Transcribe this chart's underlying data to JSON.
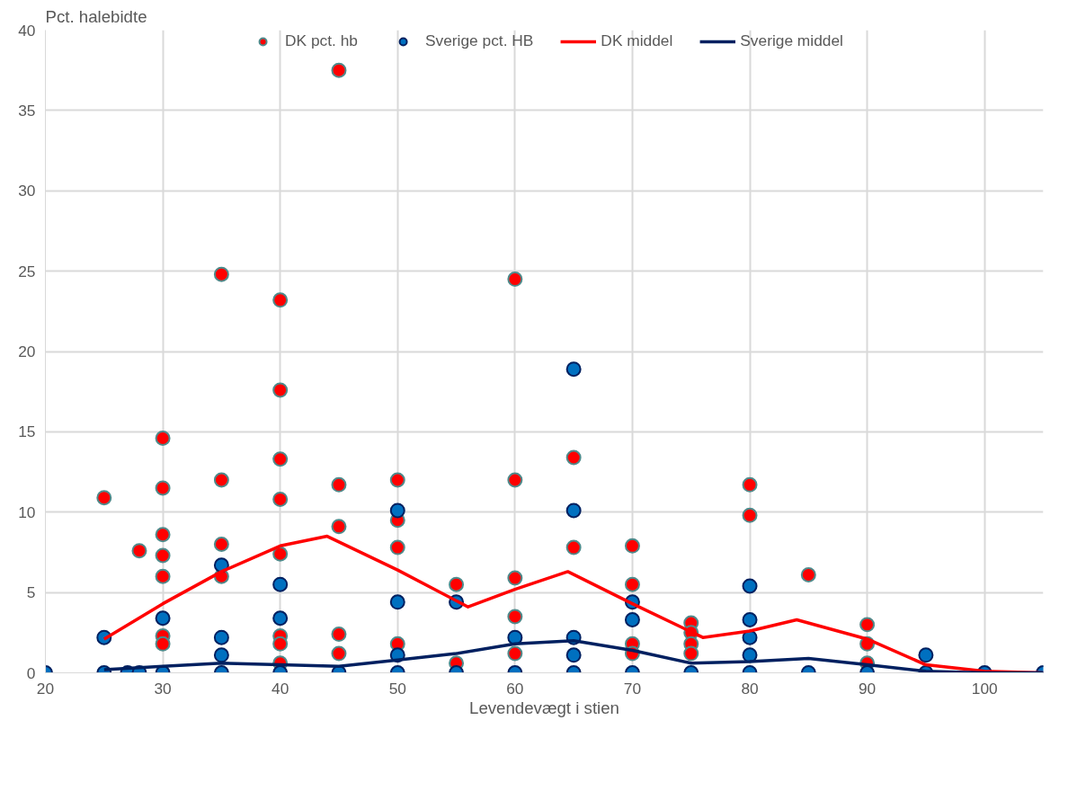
{
  "chart_data": {
    "type": "scatter",
    "xlabel": "Levendevægt i stien",
    "annotations": [
      "Pct. halebidte"
    ],
    "xlim": [
      20,
      105
    ],
    "xticks": [
      20,
      30,
      40,
      50,
      60,
      70,
      80,
      90,
      100
    ],
    "ylim": [
      0,
      40
    ],
    "yticks": [
      0,
      5,
      10,
      15,
      20,
      25,
      30,
      35,
      40
    ],
    "grid": true,
    "legend": "top",
    "series": [
      {
        "name": "DK pct. hb",
        "color": "#ff0000",
        "marker": "circle",
        "x": [
          25,
          28,
          30,
          30,
          30,
          30,
          30,
          30,
          30,
          35,
          35,
          35,
          35,
          40,
          40,
          40,
          40,
          40,
          40,
          40,
          40,
          45,
          45,
          45,
          45,
          45,
          50,
          50,
          50,
          50,
          55,
          55,
          60,
          60,
          60,
          60,
          60,
          65,
          65,
          70,
          70,
          70,
          70,
          75,
          75,
          75,
          75,
          80,
          80,
          85,
          90,
          90,
          90
        ],
        "values": [
          10.9,
          7.6,
          14.6,
          11.5,
          8.6,
          7.3,
          6.0,
          2.3,
          1.8,
          24.8,
          12.0,
          8.0,
          6.0,
          23.2,
          17.6,
          13.3,
          10.8,
          7.4,
          2.3,
          1.8,
          0.6,
          37.5,
          11.7,
          9.1,
          2.4,
          1.2,
          12.0,
          9.5,
          7.8,
          1.8,
          5.5,
          0.6,
          24.5,
          12.0,
          5.9,
          3.5,
          1.2,
          13.4,
          7.8,
          7.9,
          5.5,
          1.8,
          1.2,
          3.1,
          2.5,
          1.8,
          1.2,
          11.7,
          9.8,
          6.1,
          3.0,
          1.8,
          0.6
        ]
      },
      {
        "name": "Sverige pct. HB",
        "color": "#0070c0",
        "marker": "circle",
        "x": [
          20,
          25,
          25,
          27,
          28,
          30,
          30,
          35,
          35,
          35,
          35,
          40,
          40,
          40,
          45,
          50,
          50,
          50,
          50,
          55,
          55,
          60,
          60,
          65,
          65,
          65,
          65,
          65,
          70,
          70,
          70,
          75,
          80,
          80,
          80,
          80,
          80,
          85,
          90,
          95,
          95,
          100,
          105
        ],
        "values": [
          0,
          2.2,
          0,
          0,
          0,
          3.4,
          0,
          6.7,
          2.2,
          1.1,
          0,
          5.5,
          3.4,
          0,
          0,
          10.1,
          4.4,
          1.1,
          0,
          4.4,
          0,
          2.2,
          0,
          18.9,
          10.1,
          2.2,
          1.1,
          0,
          4.4,
          3.3,
          0,
          0,
          5.4,
          3.3,
          2.2,
          1.1,
          0,
          0,
          0,
          1.1,
          0,
          0,
          0
        ]
      },
      {
        "name": "DK middel",
        "type": "line",
        "color": "#ff0000",
        "x": [
          25,
          30,
          35,
          40,
          44,
          50,
          56,
          60,
          64.5,
          70,
          76,
          80,
          84,
          90,
          95,
          100,
          105
        ],
        "values": [
          2.1,
          4.3,
          6.3,
          7.9,
          8.5,
          6.4,
          4.1,
          5.2,
          6.3,
          4.3,
          2.2,
          2.6,
          3.3,
          2.1,
          0.5,
          0.1,
          0
        ]
      },
      {
        "name": "Sverige middel",
        "type": "line",
        "color": "#002060",
        "x": [
          25,
          30,
          35,
          40,
          45,
          50,
          55,
          60,
          65,
          70,
          75,
          80,
          85,
          90,
          95,
          100,
          105
        ],
        "values": [
          0.2,
          0.4,
          0.6,
          0.5,
          0.4,
          0.8,
          1.2,
          1.8,
          2.0,
          1.4,
          0.6,
          0.7,
          0.9,
          0.5,
          0.1,
          0,
          0
        ]
      }
    ]
  }
}
